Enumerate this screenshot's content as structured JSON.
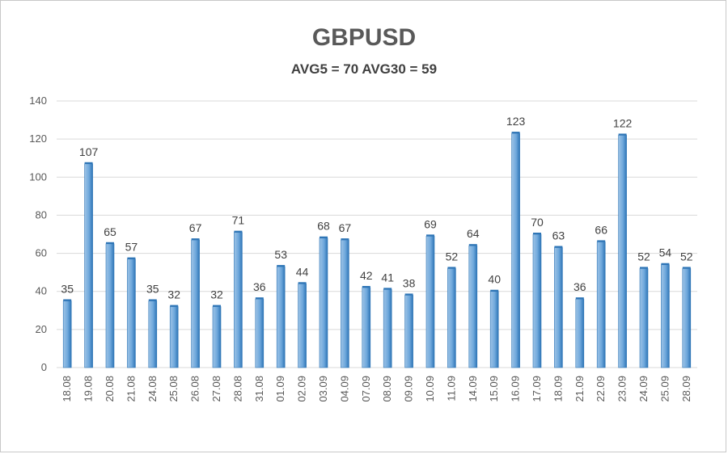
{
  "chart_data": {
    "type": "bar",
    "title": "GBPUSD",
    "subtitle": "AVG5 = 70 AVG30 = 59",
    "xlabel": "",
    "ylabel": "",
    "ylim": [
      0,
      140
    ],
    "y_ticks": [
      0,
      20,
      40,
      60,
      80,
      100,
      120,
      140
    ],
    "grid": true,
    "legend": "none",
    "categories": [
      "18.08",
      "19.08",
      "20.08",
      "21.08",
      "24.08",
      "25.08",
      "26.08",
      "27.08",
      "28.08",
      "31.08",
      "01.09",
      "02.09",
      "03.09",
      "04.09",
      "07.09",
      "08.09",
      "09.09",
      "10.09",
      "11.09",
      "14.09",
      "15.09",
      "16.09",
      "17.09",
      "18.09",
      "21.09",
      "22.09",
      "23.09",
      "24.09",
      "25.09",
      "28.09"
    ],
    "values": [
      35,
      107,
      65,
      57,
      35,
      32,
      67,
      32,
      71,
      36,
      53,
      44,
      68,
      67,
      42,
      41,
      38,
      69,
      52,
      64,
      40,
      123,
      70,
      63,
      36,
      66,
      122,
      52,
      54,
      52
    ],
    "colors": {
      "bar_light": "#9dc3e6",
      "bar_dark": "#2e75b6",
      "grid": "#d9d9d9"
    }
  }
}
